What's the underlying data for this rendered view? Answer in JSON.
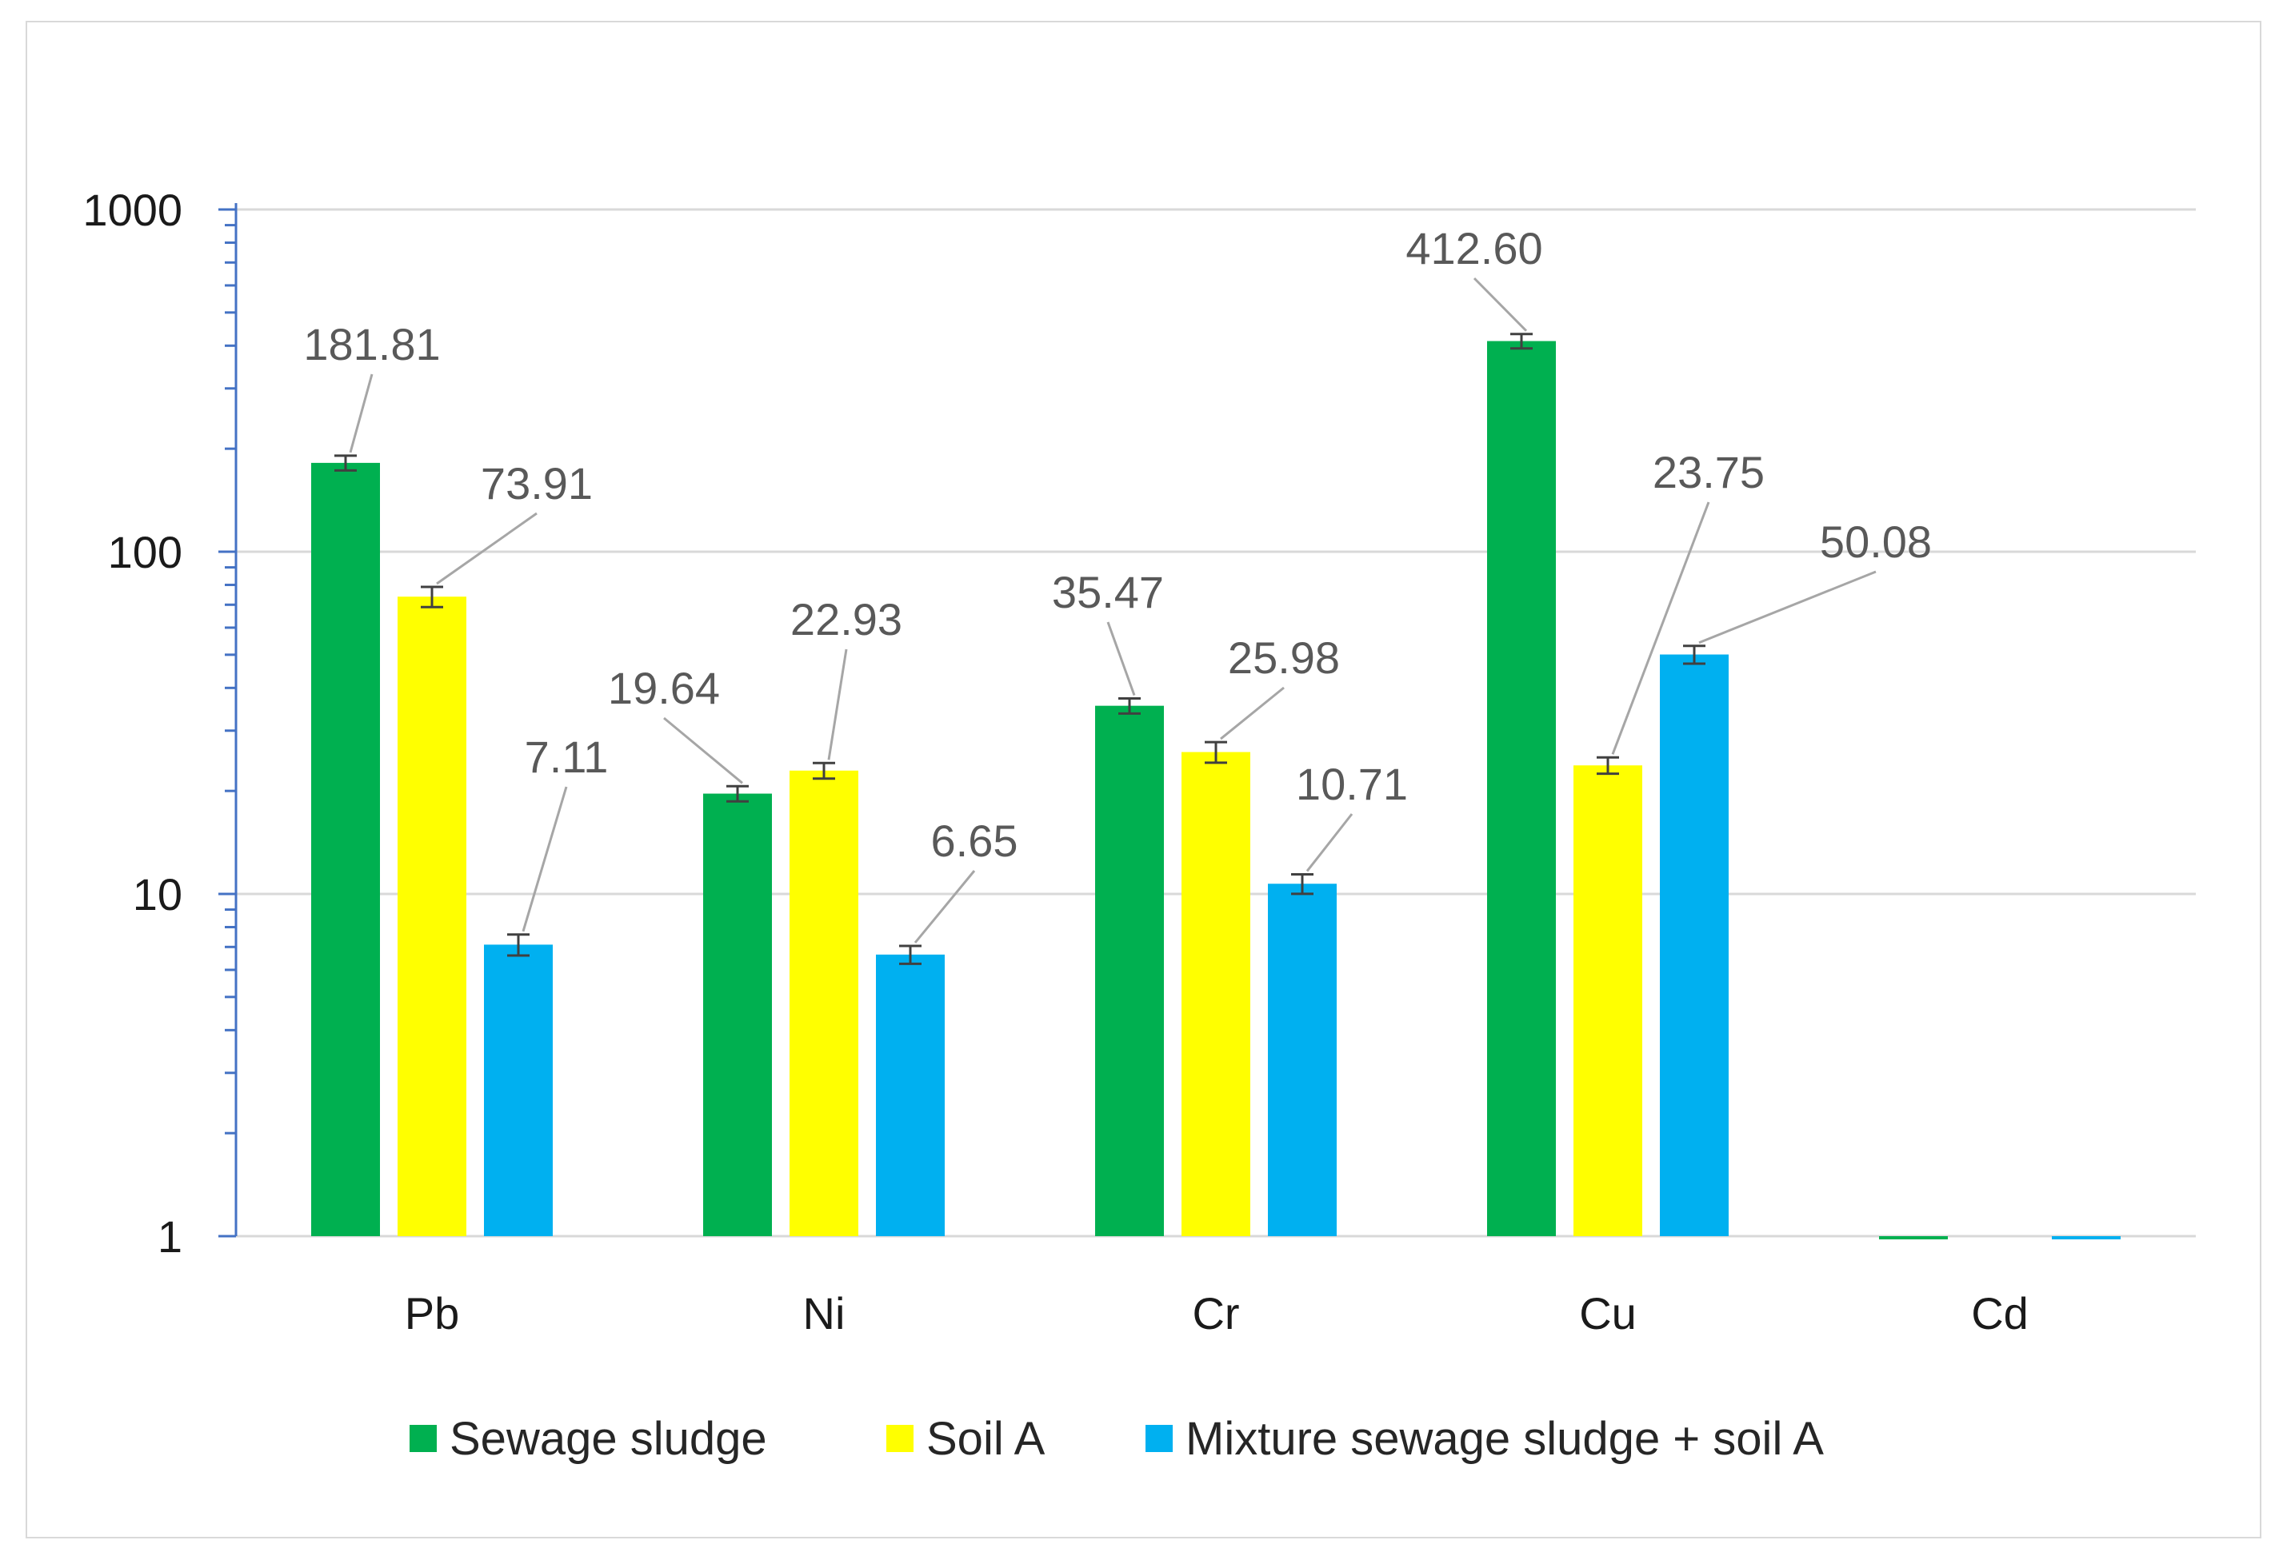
{
  "chart_data": {
    "type": "bar",
    "scale": "log",
    "title": "",
    "xlabel": "",
    "ylabel": "",
    "ylim": [
      1,
      1000
    ],
    "y_ticks": [
      1,
      10,
      100,
      1000
    ],
    "y_tick_labels": [
      "1",
      "10",
      "100",
      "1000"
    ],
    "grid": true,
    "legend_position": "bottom",
    "categories": [
      "Pb",
      "Ni",
      "Cr",
      "Cu",
      "Cd"
    ],
    "series": [
      {
        "name": "Sewage sludge",
        "color": "#00b050",
        "values": [
          181.81,
          19.64,
          35.47,
          412.6,
          0.98
        ],
        "labels": [
          "181.81",
          "19.64",
          "35.47",
          "412.60",
          ""
        ],
        "errors": [
          9,
          1,
          1.8,
          20,
          0
        ]
      },
      {
        "name": "Soil A",
        "color": "#ffff00",
        "values": [
          73.91,
          22.93,
          25.98,
          23.75,
          null
        ],
        "labels": [
          "73.91",
          "22.93",
          "25.98",
          "23.75",
          ""
        ],
        "errors": [
          5,
          1.2,
          1.8,
          1.3,
          0
        ]
      },
      {
        "name": "Mixture sewage sludge + soil A",
        "color": "#00b0f0",
        "values": [
          7.11,
          6.65,
          10.71,
          50.08,
          0.98
        ],
        "labels": [
          "7.11",
          "6.65",
          "10.71",
          "50.08",
          ""
        ],
        "errors": [
          0.5,
          0.4,
          0.7,
          3,
          0
        ]
      }
    ]
  }
}
